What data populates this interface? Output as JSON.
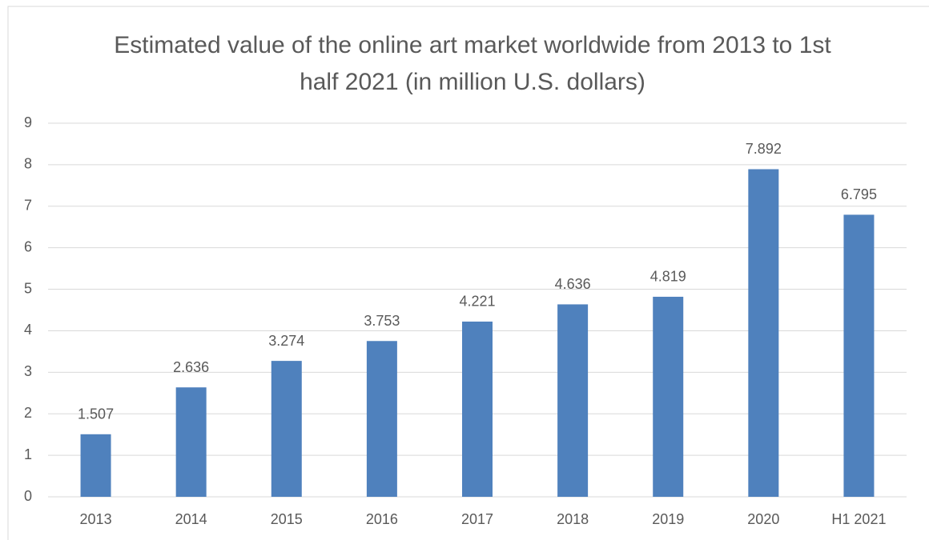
{
  "chart_data": {
    "type": "bar",
    "title": "Estimated value of the online art market worldwide from 2013 to 1st half 2021 (in million U.S. dollars)",
    "categories": [
      "2013",
      "2014",
      "2015",
      "2016",
      "2017",
      "2018",
      "2019",
      "2020",
      "H1 2021"
    ],
    "values": [
      1.507,
      2.636,
      3.274,
      3.753,
      4.221,
      4.636,
      4.819,
      7.892,
      6.795
    ],
    "color": "#4f81bd",
    "ylim": [
      0,
      9
    ],
    "yticks": [
      0,
      1,
      2,
      3,
      4,
      5,
      6,
      7,
      8,
      9
    ],
    "grid": true
  }
}
